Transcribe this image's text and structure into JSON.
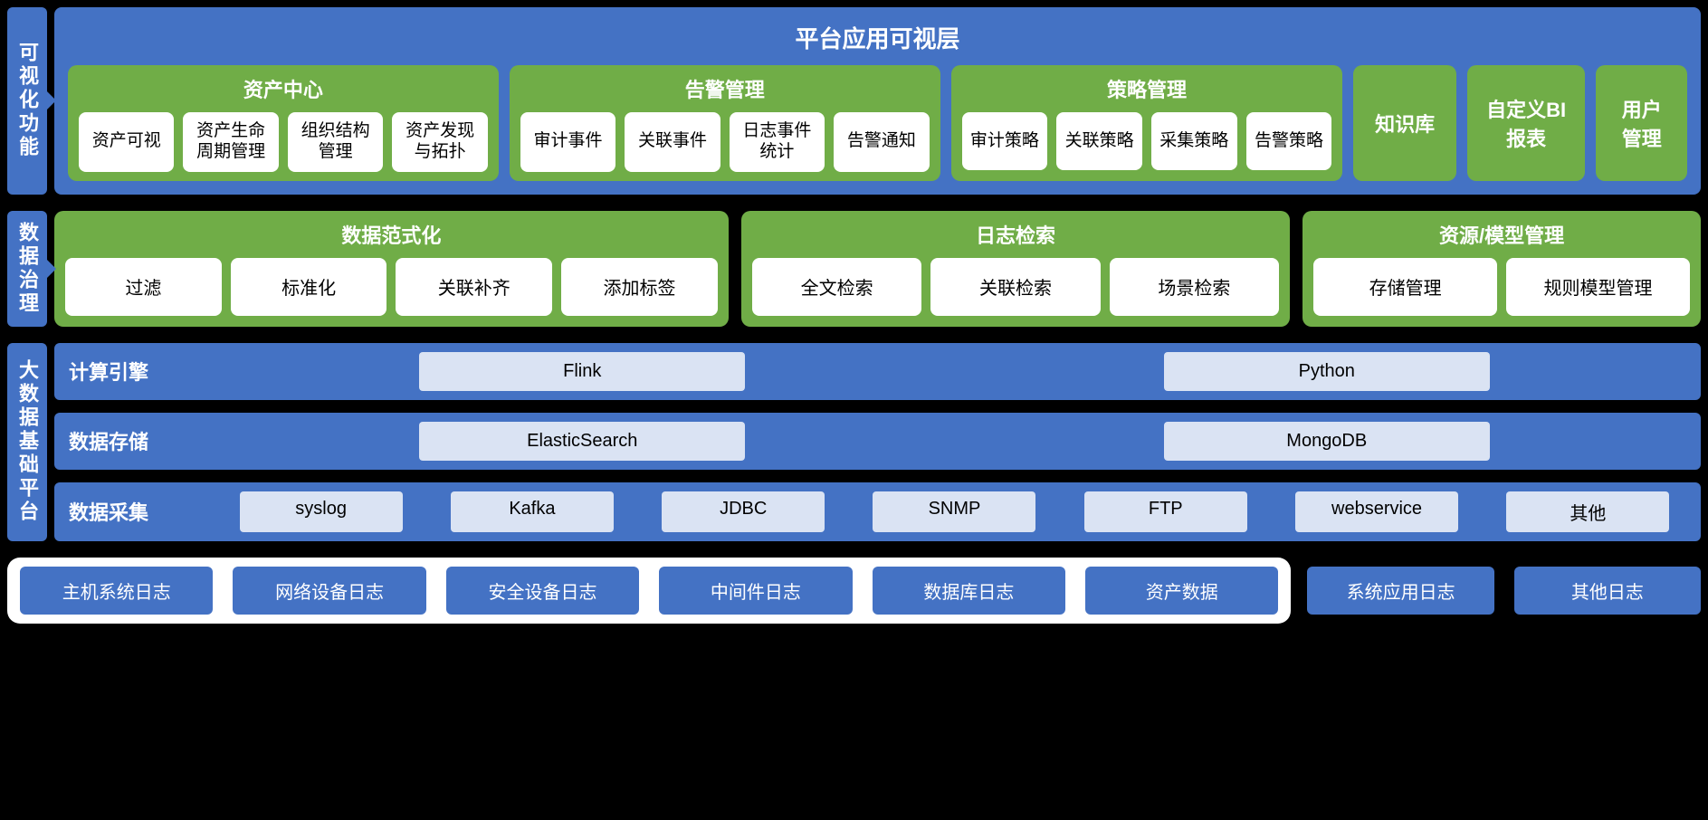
{
  "colors": {
    "blue": "#4472c4",
    "green": "#70ad47",
    "lightblue": "#dae3f3",
    "white": "#ffffff",
    "black": "#000000"
  },
  "layer1": {
    "sidebar": "可视化功能",
    "title": "平台应用可视层",
    "groups": [
      {
        "title": "资产中心",
        "items": [
          "资产可视",
          "资产生命周期管理",
          "组织结构管理",
          "资产发现与拓扑"
        ]
      },
      {
        "title": "告警管理",
        "items": [
          "审计事件",
          "关联事件",
          "日志事件统计",
          "告警通知"
        ]
      },
      {
        "title": "策略管理",
        "items": [
          "审计策略",
          "关联策略",
          "采集策略",
          "告警策略"
        ]
      }
    ],
    "extras": [
      "知识库",
      "自定义BI报表",
      "用户管理"
    ]
  },
  "layer2": {
    "sidebar": "数据治理",
    "groups": [
      {
        "title": "数据范式化",
        "items": [
          "过滤",
          "标准化",
          "关联补齐",
          "添加标签"
        ]
      },
      {
        "title": "日志检索",
        "items": [
          "全文检索",
          "关联检索",
          "场景检索"
        ]
      },
      {
        "title": "资源/模型管理",
        "items": [
          "存储管理",
          "规则模型管理"
        ]
      }
    ]
  },
  "layer3": {
    "sidebar": "大数据基础平台",
    "rows": [
      {
        "label": "计算引擎",
        "items": [
          "Flink",
          "Python"
        ]
      },
      {
        "label": "数据存储",
        "items": [
          "ElasticSearch",
          "MongoDB"
        ]
      },
      {
        "label": "数据采集",
        "items": [
          "syslog",
          "Kafka",
          "JDBC",
          "SNMP",
          "FTP",
          "webservice",
          "其他"
        ]
      }
    ]
  },
  "layer4": {
    "grouped": [
      "主机系统日志",
      "网络设备日志",
      "安全设备日志",
      "中间件日志",
      "数据库日志",
      "资产数据"
    ],
    "loose": [
      "系统应用日志",
      "其他日志"
    ]
  }
}
